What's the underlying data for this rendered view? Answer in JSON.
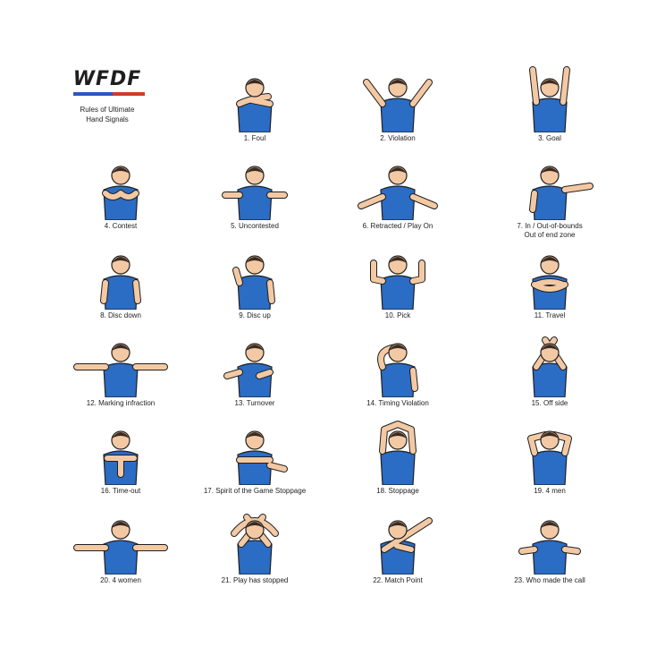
{
  "header": {
    "logo_text": "WFDF",
    "subtitle_line1": "Rules of Ultimate",
    "subtitle_line2": "Hand Signals"
  },
  "colors": {
    "shirt": "#2b6cc4",
    "skin": "#f3c9a4",
    "outline": "#1f1f1f",
    "accent": "#2a56c6"
  },
  "signals": [
    {
      "label": "1. Foul"
    },
    {
      "label": "2. Violation"
    },
    {
      "label": "3. Goal"
    },
    {
      "label": "4. Contest"
    },
    {
      "label": "5. Uncontested"
    },
    {
      "label": "6. Retracted / Play On"
    },
    {
      "label": "7. In / Out-of-bounds",
      "label2": "Out of end zone"
    },
    {
      "label": "8. Disc down"
    },
    {
      "label": "9. Disc up"
    },
    {
      "label": "10. Pick"
    },
    {
      "label": "11. Travel"
    },
    {
      "label": "12. Marking infraction"
    },
    {
      "label": "13. Turnover"
    },
    {
      "label": "14. Timing Violation"
    },
    {
      "label": "15. Off side"
    },
    {
      "label": "16. Time-out"
    },
    {
      "label": "17. Spirit of the Game Stoppage"
    },
    {
      "label": "18. Stoppage"
    },
    {
      "label": "19. 4 men"
    },
    {
      "label": "20. 4 women"
    },
    {
      "label": "21. Play has stopped"
    },
    {
      "label": "22. Match Point"
    },
    {
      "label": "23. Who made the call"
    }
  ]
}
